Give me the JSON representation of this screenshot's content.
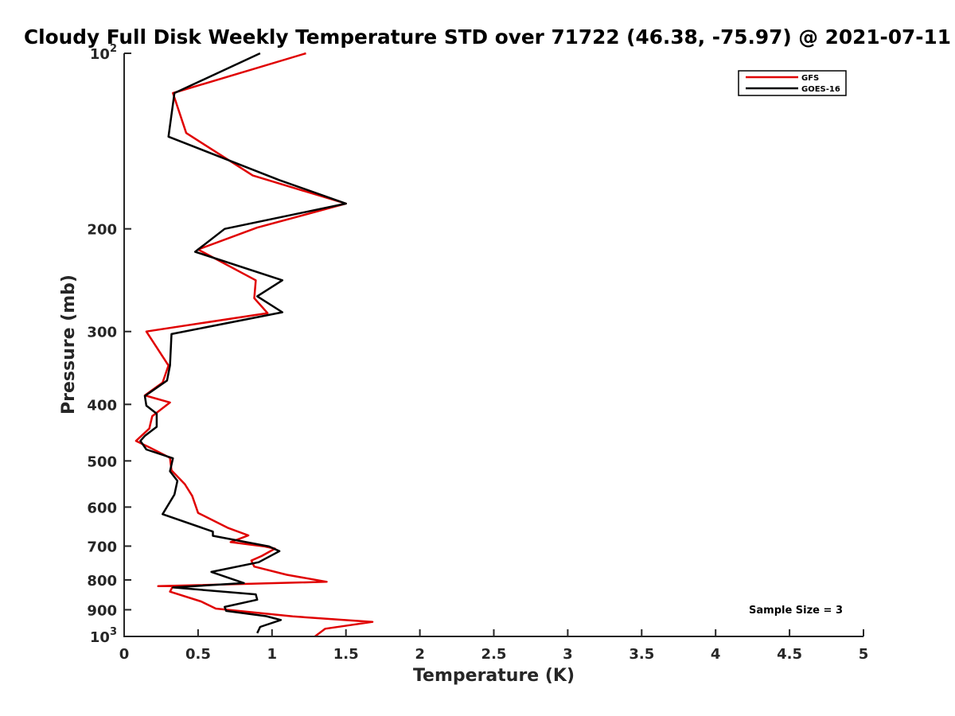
{
  "chart_data": {
    "type": "line",
    "title": "Cloudy Full Disk Weekly Temperature STD over 71722 (46.38, -75.97) @ 2021-07-11",
    "xlabel": "Temperature (K)",
    "ylabel": "Pressure (mb)",
    "xlim": [
      0,
      5
    ],
    "ylim": [
      100,
      1000
    ],
    "y_scale": "log",
    "y_reversed": true,
    "grid": false,
    "legend_position": "top-right",
    "x_ticks": [
      {
        "value": 0,
        "label": "0"
      },
      {
        "value": 0.5,
        "label": "0.5"
      },
      {
        "value": 1,
        "label": "1"
      },
      {
        "value": 1.5,
        "label": "1.5"
      },
      {
        "value": 2,
        "label": "2"
      },
      {
        "value": 2.5,
        "label": "2.5"
      },
      {
        "value": 3,
        "label": "3"
      },
      {
        "value": 3.5,
        "label": "3.5"
      },
      {
        "value": 4,
        "label": "4"
      },
      {
        "value": 4.5,
        "label": "4.5"
      },
      {
        "value": 5,
        "label": "5"
      }
    ],
    "y_ticks": [
      {
        "value": 100,
        "base": "10",
        "exp": "2"
      },
      {
        "value": 200,
        "label": "200"
      },
      {
        "value": 300,
        "label": "300"
      },
      {
        "value": 400,
        "label": "400"
      },
      {
        "value": 500,
        "label": "500"
      },
      {
        "value": 600,
        "label": "600"
      },
      {
        "value": 700,
        "label": "700"
      },
      {
        "value": 800,
        "label": "800"
      },
      {
        "value": 900,
        "label": "900"
      },
      {
        "value": 1000,
        "base": "10",
        "exp": "3"
      }
    ],
    "annotation": "Sample Size = 3",
    "series": [
      {
        "name": "GFS",
        "color": "#e00000",
        "points": [
          [
            1.23,
            100
          ],
          [
            0.33,
            117
          ],
          [
            0.42,
            137
          ],
          [
            0.87,
            162
          ],
          [
            1.5,
            181
          ],
          [
            0.9,
            199
          ],
          [
            0.5,
            217
          ],
          [
            0.89,
            245
          ],
          [
            0.88,
            263
          ],
          [
            0.97,
            279
          ],
          [
            0.15,
            300
          ],
          [
            0.3,
            343
          ],
          [
            0.26,
            367
          ],
          [
            0.14,
            386
          ],
          [
            0.31,
            397
          ],
          [
            0.19,
            419
          ],
          [
            0.17,
            440
          ],
          [
            0.08,
            462
          ],
          [
            0.17,
            474
          ],
          [
            0.31,
            494
          ],
          [
            0.32,
            519
          ],
          [
            0.41,
            548
          ],
          [
            0.46,
            574
          ],
          [
            0.5,
            614
          ],
          [
            0.7,
            651
          ],
          [
            0.84,
            671
          ],
          [
            0.72,
            689
          ],
          [
            0.95,
            701
          ],
          [
            1.02,
            707
          ],
          [
            0.93,
            728
          ],
          [
            0.86,
            741
          ],
          [
            0.88,
            759
          ],
          [
            1.1,
            784
          ],
          [
            1.37,
            806
          ],
          [
            0.23,
            820
          ],
          [
            0.33,
            820
          ],
          [
            0.31,
            838
          ],
          [
            0.52,
            871
          ],
          [
            0.62,
            896
          ],
          [
            1.14,
            924
          ],
          [
            1.68,
            944
          ],
          [
            1.36,
            970
          ],
          [
            1.29,
            1000
          ]
        ]
      },
      {
        "name": "GOES-16",
        "color": "#000000",
        "points": [
          [
            0.92,
            100
          ],
          [
            0.34,
            117
          ],
          [
            0.3,
            139
          ],
          [
            1.05,
            165
          ],
          [
            1.5,
            181
          ],
          [
            0.68,
            200
          ],
          [
            0.48,
            219
          ],
          [
            1.07,
            245
          ],
          [
            0.9,
            261
          ],
          [
            1.07,
            278
          ],
          [
            0.32,
            303
          ],
          [
            0.31,
            343
          ],
          [
            0.29,
            364
          ],
          [
            0.14,
            387
          ],
          [
            0.15,
            402
          ],
          [
            0.22,
            415
          ],
          [
            0.22,
            437
          ],
          [
            0.14,
            453
          ],
          [
            0.11,
            462
          ],
          [
            0.15,
            478
          ],
          [
            0.33,
            495
          ],
          [
            0.31,
            521
          ],
          [
            0.36,
            541
          ],
          [
            0.34,
            571
          ],
          [
            0.26,
            617
          ],
          [
            0.6,
            661
          ],
          [
            0.6,
            672
          ],
          [
            0.98,
            701
          ],
          [
            1.05,
            714
          ],
          [
            0.91,
            746
          ],
          [
            0.59,
            775
          ],
          [
            0.81,
            810
          ],
          [
            0.33,
            824
          ],
          [
            0.89,
            847
          ],
          [
            0.9,
            865
          ],
          [
            0.68,
            890
          ],
          [
            0.69,
            904
          ],
          [
            0.96,
            923
          ],
          [
            1.06,
            937
          ],
          [
            0.92,
            963
          ],
          [
            0.9,
            987
          ]
        ]
      }
    ]
  }
}
